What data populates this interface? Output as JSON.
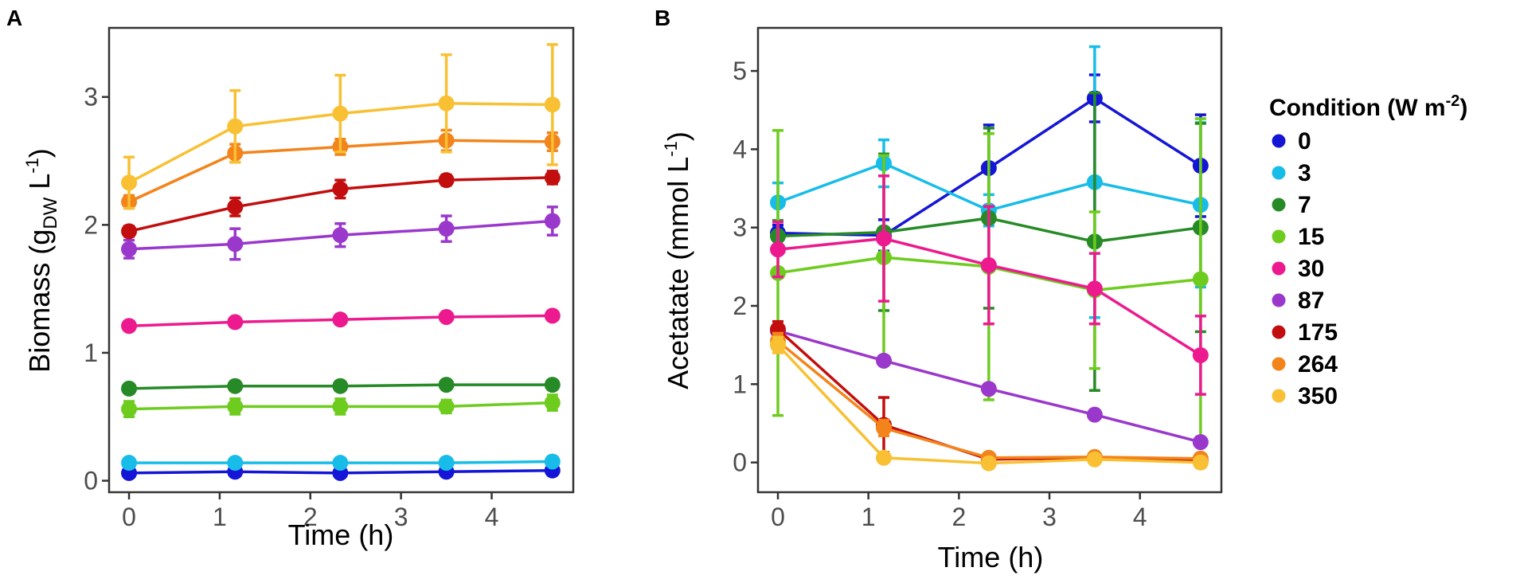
{
  "conditions": [
    {
      "label": "0",
      "color": "#1515d6"
    },
    {
      "label": "3",
      "color": "#17bde8"
    },
    {
      "label": "7",
      "color": "#268a26"
    },
    {
      "label": "15",
      "color": "#6ecc1e"
    },
    {
      "label": "30",
      "color": "#ec1a8e"
    },
    {
      "label": "87",
      "color": "#9a38cc"
    },
    {
      "label": "175",
      "color": "#c20e0e"
    },
    {
      "label": "264",
      "color": "#f2841b"
    },
    {
      "label": "350",
      "color": "#f8c032"
    }
  ],
  "legend": {
    "title_main": "Condition (W m",
    "title_sup": "-2",
    "title_end": ")"
  },
  "chart_data": [
    {
      "type": "line",
      "panel_label": "A",
      "title": "",
      "xlabel": "Time (h)",
      "ylabel_main": "Biomass (g",
      "ylabel_sub": "DW",
      "ylabel_mid": " L",
      "ylabel_sup": "-1",
      "ylabel_end": ")",
      "xlim": [
        -0.22,
        4.9
      ],
      "ylim": [
        -0.09,
        3.54
      ],
      "xticks": [
        0,
        1,
        2,
        3,
        4
      ],
      "yticks": [
        0,
        1,
        2,
        3
      ],
      "x": [
        0,
        1.17,
        2.33,
        3.5,
        4.67
      ],
      "series": [
        {
          "name": "0",
          "values": [
            0.06,
            0.07,
            0.06,
            0.07,
            0.08
          ],
          "errors": [
            0.01,
            0.01,
            0.01,
            0.01,
            0.01
          ]
        },
        {
          "name": "3",
          "values": [
            0.14,
            0.14,
            0.14,
            0.14,
            0.15
          ],
          "errors": [
            0.01,
            0.01,
            0.01,
            0.01,
            0.01
          ]
        },
        {
          "name": "7",
          "values": [
            0.72,
            0.74,
            0.74,
            0.75,
            0.75
          ],
          "errors": [
            0.02,
            0.02,
            0.02,
            0.02,
            0.02
          ]
        },
        {
          "name": "15",
          "values": [
            0.56,
            0.58,
            0.58,
            0.58,
            0.61
          ],
          "errors": [
            0.06,
            0.06,
            0.06,
            0.05,
            0.06
          ]
        },
        {
          "name": "30",
          "values": [
            1.21,
            1.24,
            1.26,
            1.28,
            1.29
          ],
          "errors": [
            0.02,
            0.02,
            0.02,
            0.02,
            0.02
          ]
        },
        {
          "name": "87",
          "values": [
            1.81,
            1.85,
            1.92,
            1.97,
            2.03
          ],
          "errors": [
            0.07,
            0.12,
            0.09,
            0.1,
            0.11
          ]
        },
        {
          "name": "175",
          "values": [
            1.95,
            2.14,
            2.28,
            2.35,
            2.37
          ],
          "errors": [
            0.04,
            0.07,
            0.07,
            0.04,
            0.05
          ]
        },
        {
          "name": "264",
          "values": [
            2.18,
            2.56,
            2.61,
            2.66,
            2.65
          ],
          "errors": [
            0.05,
            0.07,
            0.06,
            0.08,
            0.07
          ]
        },
        {
          "name": "350",
          "values": [
            2.33,
            2.77,
            2.87,
            2.95,
            2.94
          ],
          "errors": [
            0.2,
            0.28,
            0.3,
            0.38,
            0.47
          ]
        }
      ]
    },
    {
      "type": "line",
      "panel_label": "B",
      "title": "",
      "xlabel": "Time (h)",
      "ylabel_main": "Acetatate (mmol L",
      "ylabel_sup": "-1",
      "ylabel_end": ")",
      "xlim": [
        -0.22,
        4.9
      ],
      "ylim": [
        -0.38,
        5.55
      ],
      "xticks": [
        0,
        1,
        2,
        3,
        4
      ],
      "yticks": [
        0,
        1,
        2,
        3,
        4,
        5
      ],
      "x": [
        0,
        1.17,
        2.33,
        3.5,
        4.67
      ],
      "series": [
        {
          "name": "0",
          "values": [
            2.93,
            2.9,
            3.76,
            4.65,
            3.79
          ],
          "errors": [
            0.1,
            0.2,
            0.55,
            0.3,
            0.65
          ]
        },
        {
          "name": "3",
          "values": [
            3.32,
            3.82,
            3.22,
            3.58,
            3.29
          ],
          "errors": [
            0.25,
            0.3,
            0.2,
            1.73,
            1.05
          ]
        },
        {
          "name": "7",
          "values": [
            2.89,
            2.94,
            3.12,
            2.82,
            3.0
          ],
          "errors": [
            0.2,
            1.0,
            1.15,
            1.9,
            1.33
          ]
        },
        {
          "name": "15",
          "values": [
            2.42,
            2.62,
            2.5,
            2.2,
            2.34
          ],
          "errors": [
            1.82,
            1.3,
            1.7,
            1.0,
            2.05
          ]
        },
        {
          "name": "30",
          "values": [
            2.72,
            2.86,
            2.52,
            2.22,
            1.37
          ],
          "errors": [
            0.35,
            0.8,
            0.75,
            0.45,
            0.5
          ]
        },
        {
          "name": "87",
          "values": [
            1.68,
            1.3,
            0.94,
            0.61,
            0.26
          ],
          "errors": [
            0.03,
            0.03,
            0.03,
            0.03,
            0.03
          ]
        },
        {
          "name": "175",
          "values": [
            1.7,
            0.48,
            0.04,
            0.06,
            0.02
          ],
          "errors": [
            0.1,
            0.35,
            0.05,
            0.05,
            0.08
          ]
        },
        {
          "name": "264",
          "values": [
            1.55,
            0.44,
            0.06,
            0.07,
            0.05
          ],
          "errors": [
            0.1,
            0.1,
            0.04,
            0.05,
            0.05
          ]
        },
        {
          "name": "350",
          "values": [
            1.5,
            0.06,
            -0.01,
            0.04,
            0.0
          ],
          "errors": [
            0.1,
            0.04,
            0.03,
            0.03,
            0.03
          ]
        }
      ]
    }
  ]
}
